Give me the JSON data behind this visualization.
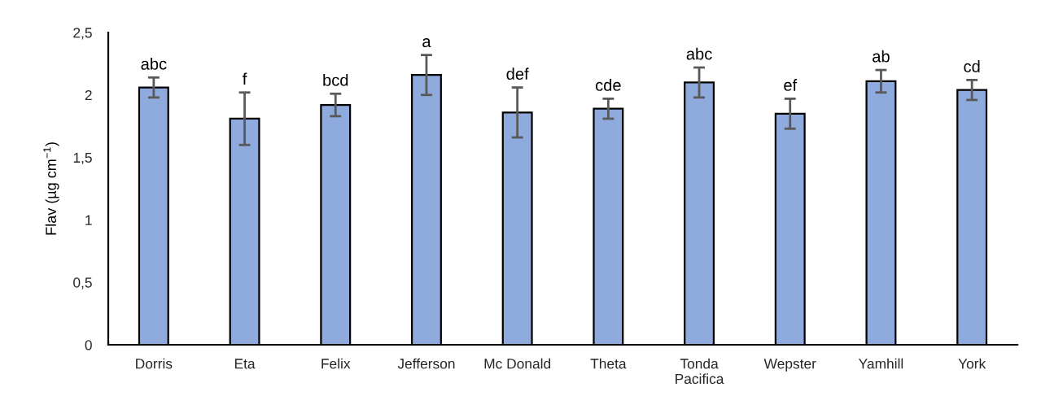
{
  "chart_data": {
    "type": "bar",
    "ylabel": "Flav (µg cm$^{−1}$)",
    "categories": [
      "Dorris",
      "Eta",
      "Felix",
      "Jefferson",
      "Mc Donald",
      "Theta",
      "Tonda\nPacifica",
      "Wepster",
      "Yamhill",
      "York"
    ],
    "values": [
      2.06,
      1.81,
      1.92,
      2.16,
      1.86,
      1.89,
      2.1,
      1.85,
      2.11,
      2.04
    ],
    "errors": [
      0.08,
      0.21,
      0.09,
      0.16,
      0.2,
      0.08,
      0.12,
      0.12,
      0.09,
      0.08
    ],
    "color": "#8faadc",
    "ylim": [
      0,
      2.5
    ],
    "yticks": [
      0,
      {
        "value": 0.5,
        "label": "0,5"
      },
      1,
      {
        "value": 1.5,
        "label": "1,5"
      },
      2,
      {
        "value": 2.5,
        "label": "2,5"
      }
    ],
    "grid": false,
    "annotations": [
      {
        "text": "abc",
        "x": "Dorris",
        "y": 2.14
      },
      {
        "text": "f",
        "x": "Eta",
        "y": 2.02
      },
      {
        "text": "bcd",
        "x": "Felix",
        "y": 2.01
      },
      {
        "text": "a",
        "x": "Jefferson",
        "y": 2.32
      },
      {
        "text": "def",
        "x": "Mc Donald",
        "y": 2.06
      },
      {
        "text": "cde",
        "x": "Theta",
        "y": 1.97
      },
      {
        "text": "abc",
        "x": "Tonda\nPacifica",
        "y": 2.22
      },
      {
        "text": "ef",
        "x": "Wepster",
        "y": 1.97
      },
      {
        "text": "ab",
        "x": "Yamhill",
        "y": 2.2
      },
      {
        "text": "cd",
        "x": "York",
        "y": 2.12
      }
    ]
  }
}
